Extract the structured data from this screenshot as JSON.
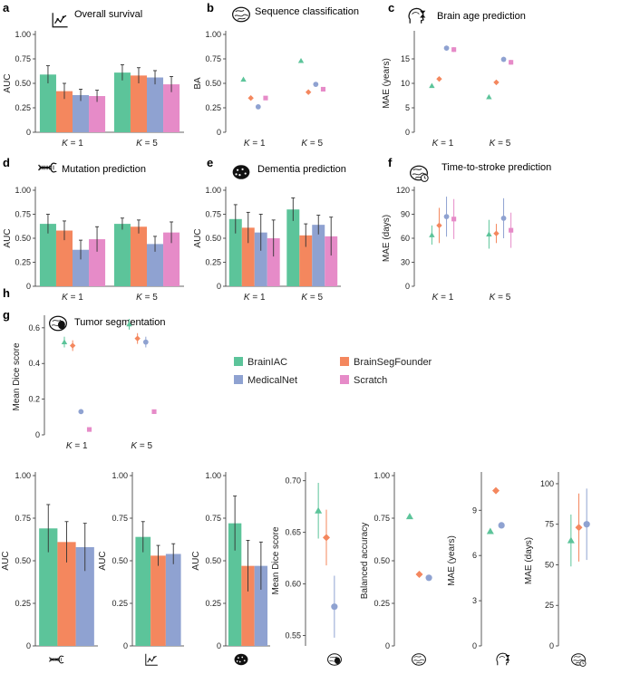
{
  "colors": {
    "BrainIAC": "#5cc49a",
    "BrainSegFounder": "#f4875e",
    "MedicalNet": "#8fa2d1",
    "Scratch": "#e68bc8"
  },
  "legend": {
    "items": [
      "BrainIAC",
      "BrainSegFounder",
      "MedicalNet",
      "Scratch"
    ]
  },
  "chart_data": [
    {
      "id": "a",
      "panel": "a",
      "type": "bar",
      "title": "Overall survival",
      "icon": "survival-curve-icon",
      "ylabel": "AUC",
      "ylim": [
        0,
        1
      ],
      "yticks": [
        0,
        0.25,
        0.5,
        0.75,
        1
      ],
      "ytick_labels": [
        "0",
        "0.25",
        "0.50",
        "0.75",
        "1.00"
      ],
      "categories": [
        "K = 1",
        "K = 5"
      ],
      "series": [
        {
          "name": "BrainIAC",
          "values": [
            0.59,
            0.61
          ],
          "err": [
            0.09,
            0.08
          ]
        },
        {
          "name": "BrainSegFounder",
          "values": [
            0.42,
            0.58
          ],
          "err": [
            0.08,
            0.08
          ]
        },
        {
          "name": "MedicalNet",
          "values": [
            0.38,
            0.56
          ],
          "err": [
            0.06,
            0.07
          ]
        },
        {
          "name": "Scratch",
          "values": [
            0.37,
            0.49
          ],
          "err": [
            0.06,
            0.08
          ]
        }
      ]
    },
    {
      "id": "b",
      "panel": "b",
      "type": "scatter",
      "title": "Sequence classification",
      "icon": "brain-mri-icon",
      "ylabel": "BA",
      "ylim": [
        0,
        1
      ],
      "yticks": [
        0,
        0.25,
        0.5,
        0.75,
        1
      ],
      "ytick_labels": [
        "0",
        "0.25",
        "0.50",
        "0.75",
        "1.00"
      ],
      "categories": [
        "K = 1",
        "K = 5"
      ],
      "series": [
        {
          "name": "BrainIAC",
          "values": [
            0.54,
            0.73
          ],
          "err": [
            0,
            0
          ]
        },
        {
          "name": "BrainSegFounder",
          "values": [
            0.35,
            0.41
          ],
          "err": [
            0,
            0
          ]
        },
        {
          "name": "MedicalNet",
          "values": [
            0.26,
            0.49
          ],
          "err": [
            0,
            0
          ]
        },
        {
          "name": "Scratch",
          "values": [
            0.35,
            0.44
          ],
          "err": [
            0,
            0
          ]
        }
      ]
    },
    {
      "id": "c",
      "panel": "c",
      "type": "scatter",
      "title": "Brain age prediction",
      "icon": "head-hourglass-icon",
      "ylabel": "MAE (years)",
      "ylim": [
        0,
        20
      ],
      "yticks": [
        0,
        5,
        10,
        15
      ],
      "ytick_labels": [
        "0",
        "5",
        "10",
        "15"
      ],
      "categories": [
        "K = 1",
        "K = 5"
      ],
      "series": [
        {
          "name": "BrainIAC",
          "values": [
            9.5,
            7.2
          ],
          "err": [
            0.3,
            0.4
          ]
        },
        {
          "name": "BrainSegFounder",
          "values": [
            10.9,
            10.2
          ],
          "err": [
            0.4,
            0.4
          ]
        },
        {
          "name": "MedicalNet",
          "values": [
            17.2,
            14.9
          ],
          "err": [
            0.5,
            0.5
          ]
        },
        {
          "name": "Scratch",
          "values": [
            16.9,
            14.3
          ],
          "err": [
            0.5,
            0.5
          ]
        }
      ]
    },
    {
      "id": "d",
      "panel": "d",
      "type": "bar",
      "title": "Mutation prediction",
      "icon": "dna-icon",
      "ylabel": "AUC",
      "ylim": [
        0,
        1
      ],
      "yticks": [
        0,
        0.25,
        0.5,
        0.75,
        1
      ],
      "ytick_labels": [
        "0",
        "0.25",
        "0.50",
        "0.75",
        "1.00"
      ],
      "categories": [
        "K = 1",
        "K = 5"
      ],
      "series": [
        {
          "name": "BrainIAC",
          "values": [
            0.65,
            0.65
          ],
          "err": [
            0.1,
            0.06
          ]
        },
        {
          "name": "BrainSegFounder",
          "values": [
            0.58,
            0.62
          ],
          "err": [
            0.1,
            0.07
          ]
        },
        {
          "name": "MedicalNet",
          "values": [
            0.38,
            0.44
          ],
          "err": [
            0.1,
            0.08
          ]
        },
        {
          "name": "Scratch",
          "values": [
            0.49,
            0.56
          ],
          "err": [
            0.13,
            0.11
          ]
        }
      ]
    },
    {
      "id": "e",
      "panel": "e",
      "type": "bar",
      "title": "Dementia prediction",
      "icon": "brain-spots-icon",
      "ylabel": "AUC",
      "ylim": [
        0,
        1
      ],
      "yticks": [
        0,
        0.25,
        0.5,
        0.75,
        1
      ],
      "ytick_labels": [
        "0",
        "0.25",
        "0.50",
        "0.75",
        "1.00"
      ],
      "categories": [
        "K = 1",
        "K = 5"
      ],
      "series": [
        {
          "name": "BrainIAC",
          "values": [
            0.7,
            0.8
          ],
          "err": [
            0.15,
            0.12
          ]
        },
        {
          "name": "BrainSegFounder",
          "values": [
            0.61,
            0.53
          ],
          "err": [
            0.16,
            0.12
          ]
        },
        {
          "name": "MedicalNet",
          "values": [
            0.56,
            0.64
          ],
          "err": [
            0.19,
            0.1
          ]
        },
        {
          "name": "Scratch",
          "values": [
            0.5,
            0.52
          ],
          "err": [
            0.19,
            0.2
          ]
        }
      ]
    },
    {
      "id": "f",
      "panel": "f",
      "type": "scatter",
      "title": "Time-to-stroke prediction",
      "icon": "brain-clock-icon",
      "ylabel": "MAE (days)",
      "ylim": [
        0,
        120
      ],
      "yticks": [
        0,
        30,
        60,
        90,
        120
      ],
      "ytick_labels": [
        "0",
        "30",
        "60",
        "90",
        "120"
      ],
      "categories": [
        "K = 1",
        "K = 5"
      ],
      "series": [
        {
          "name": "BrainIAC",
          "values": [
            64,
            65
          ],
          "err": [
            12,
            18
          ]
        },
        {
          "name": "BrainSegFounder",
          "values": [
            76,
            66
          ],
          "err": [
            22,
            12
          ]
        },
        {
          "name": "MedicalNet",
          "values": [
            87,
            85
          ],
          "err": [
            25,
            25
          ]
        },
        {
          "name": "Scratch",
          "values": [
            84,
            70
          ],
          "err": [
            25,
            22
          ]
        }
      ]
    },
    {
      "id": "g",
      "panel": "g",
      "type": "scatter",
      "title": "Tumor segmentation",
      "icon": "brain-tumor-icon",
      "ylabel": "Mean Dice score",
      "ylim": [
        0,
        0.65
      ],
      "yticks": [
        0,
        0.2,
        0.4,
        0.6
      ],
      "ytick_labels": [
        "0",
        "0.2",
        "0.4",
        "0.6"
      ],
      "categories": [
        "K = 1",
        "K = 5"
      ],
      "series": [
        {
          "name": "BrainIAC",
          "values": [
            0.52,
            0.62
          ],
          "err": [
            0.03,
            0.03
          ]
        },
        {
          "name": "BrainSegFounder",
          "values": [
            0.5,
            0.54
          ],
          "err": [
            0.03,
            0.03
          ]
        },
        {
          "name": "MedicalNet",
          "values": [
            0.13,
            0.52
          ],
          "err": [
            0.01,
            0.03
          ]
        },
        {
          "name": "Scratch",
          "values": [
            0.03,
            0.13
          ],
          "err": [
            0.01,
            0.01
          ]
        }
      ]
    },
    {
      "id": "h1",
      "panel": "h",
      "type": "bar",
      "icon": "dna-icon",
      "ylabel": "AUC",
      "ylim": [
        0,
        1
      ],
      "yticks": [
        0,
        0.25,
        0.5,
        0.75,
        1
      ],
      "ytick_labels": [
        "0",
        "0.25",
        "0.50",
        "0.75",
        "1.00"
      ],
      "categories": [
        ""
      ],
      "series": [
        {
          "name": "BrainIAC",
          "values": [
            0.69
          ],
          "err": [
            0.14
          ]
        },
        {
          "name": "BrainSegFounder",
          "values": [
            0.61
          ],
          "err": [
            0.12
          ]
        },
        {
          "name": "MedicalNet",
          "values": [
            0.58
          ],
          "err": [
            0.14
          ]
        }
      ]
    },
    {
      "id": "h2",
      "panel": "h",
      "type": "bar",
      "icon": "survival-curve-icon",
      "ylabel": "AUC",
      "ylim": [
        0,
        1
      ],
      "yticks": [
        0,
        0.25,
        0.5,
        0.75,
        1
      ],
      "ytick_labels": [
        "0",
        "0.25",
        "0.50",
        "0.75",
        "1.00"
      ],
      "categories": [
        ""
      ],
      "series": [
        {
          "name": "BrainIAC",
          "values": [
            0.64
          ],
          "err": [
            0.09
          ]
        },
        {
          "name": "BrainSegFounder",
          "values": [
            0.53
          ],
          "err": [
            0.06
          ]
        },
        {
          "name": "MedicalNet",
          "values": [
            0.54
          ],
          "err": [
            0.06
          ]
        }
      ]
    },
    {
      "id": "h3",
      "panel": "h",
      "type": "bar",
      "icon": "brain-spots-icon",
      "ylabel": "AUC",
      "ylim": [
        0,
        1
      ],
      "yticks": [
        0,
        0.25,
        0.5,
        0.75,
        1
      ],
      "ytick_labels": [
        "0",
        "0.25",
        "0.50",
        "0.75",
        "1.00"
      ],
      "categories": [
        ""
      ],
      "series": [
        {
          "name": "BrainIAC",
          "values": [
            0.72
          ],
          "err": [
            0.16
          ]
        },
        {
          "name": "BrainSegFounder",
          "values": [
            0.47
          ],
          "err": [
            0.15
          ]
        },
        {
          "name": "MedicalNet",
          "values": [
            0.47
          ],
          "err": [
            0.14
          ]
        }
      ]
    },
    {
      "id": "h4",
      "panel": "h",
      "type": "scatter",
      "icon": "brain-tumor-icon",
      "ylabel": "Mean Dice score",
      "ylim": [
        0.54,
        0.705
      ],
      "yticks": [
        0.55,
        0.6,
        0.65,
        0.7
      ],
      "ytick_labels": [
        "0.55",
        "0.60",
        "0.65",
        "0.70"
      ],
      "categories": [
        ""
      ],
      "series": [
        {
          "name": "BrainIAC",
          "values": [
            0.671
          ],
          "err": [
            0.027
          ]
        },
        {
          "name": "BrainSegFounder",
          "values": [
            0.645
          ],
          "err": [
            0.027
          ]
        },
        {
          "name": "MedicalNet",
          "values": [
            0.578
          ],
          "err": [
            0.03
          ]
        }
      ]
    },
    {
      "id": "h5",
      "panel": "h",
      "type": "scatter",
      "icon": "brain-mri-icon",
      "ylabel": "Balanced accuracy",
      "ylim": [
        0,
        1
      ],
      "yticks": [
        0,
        0.25,
        0.5,
        0.75,
        1
      ],
      "ytick_labels": [
        "0",
        "0.25",
        "0.50",
        "0.75",
        "1.00"
      ],
      "categories": [
        ""
      ],
      "series": [
        {
          "name": "BrainIAC",
          "values": [
            0.76
          ],
          "err": [
            0
          ]
        },
        {
          "name": "BrainSegFounder",
          "values": [
            0.42
          ],
          "err": [
            0
          ]
        },
        {
          "name": "MedicalNet",
          "values": [
            0.4
          ],
          "err": [
            0
          ]
        }
      ]
    },
    {
      "id": "h6",
      "panel": "h",
      "type": "scatter",
      "icon": "head-hourglass-icon",
      "ylabel": "MAE (years)",
      "ylim": [
        0,
        11.3
      ],
      "yticks": [
        0,
        3,
        6,
        9
      ],
      "ytick_labels": [
        "0",
        "3",
        "6",
        "9"
      ],
      "categories": [
        ""
      ],
      "series": [
        {
          "name": "BrainIAC",
          "values": [
            7.6
          ],
          "err": [
            0.15
          ]
        },
        {
          "name": "BrainSegFounder",
          "values": [
            10.3
          ],
          "err": [
            0.15
          ]
        },
        {
          "name": "MedicalNet",
          "values": [
            8.0
          ],
          "err": [
            0.15
          ]
        }
      ]
    },
    {
      "id": "h7",
      "panel": "h",
      "type": "scatter",
      "icon": "brain-clock-icon",
      "ylabel": "MAE (days)",
      "ylim": [
        0,
        105
      ],
      "yticks": [
        0,
        25,
        50,
        75,
        100
      ],
      "ytick_labels": [
        "0",
        "25",
        "50",
        "75",
        "100"
      ],
      "categories": [
        ""
      ],
      "series": [
        {
          "name": "BrainIAC",
          "values": [
            65
          ],
          "err": [
            16
          ]
        },
        {
          "name": "BrainSegFounder",
          "values": [
            73
          ],
          "err": [
            21
          ]
        },
        {
          "name": "MedicalNet",
          "values": [
            75
          ],
          "err": [
            22
          ]
        }
      ]
    }
  ]
}
